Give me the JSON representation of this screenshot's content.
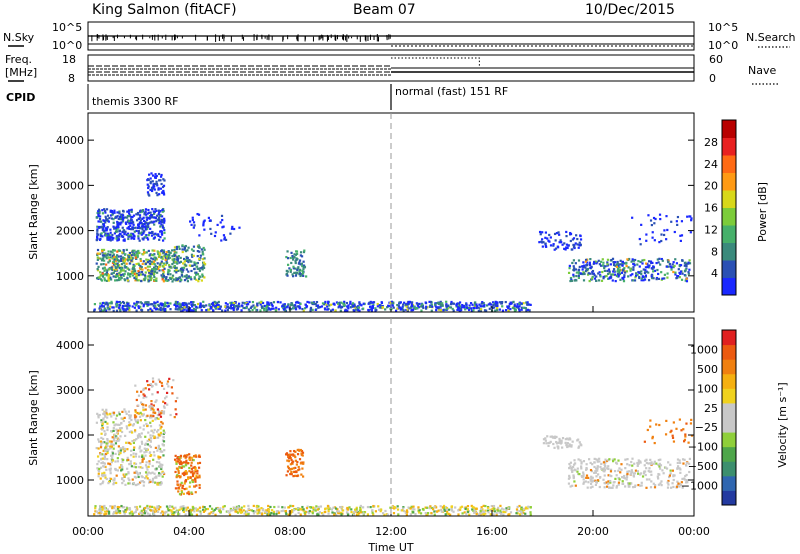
{
  "header": {
    "site": "King Salmon (fitACF)",
    "beam": "Beam 07",
    "date": "10/Dec/2015"
  },
  "top_panels": {
    "nsky_label": "N.Sky",
    "nsky_ticks": [
      "10^5",
      "10^0"
    ],
    "nsearch_label": "N.Search",
    "nsearch_ticks": [
      "10^5",
      "10^0"
    ],
    "freq_label": "Freq.",
    "freq_unit": "[MHz]",
    "freq_ticks": [
      "18",
      "8"
    ],
    "nave_label": "Nave",
    "nave_ticks": [
      "60",
      "0"
    ],
    "cpid_label": "CPID",
    "cpid_segments": [
      "themis 3300 RF",
      "normal (fast) 151 RF"
    ]
  },
  "colors": {
    "power_scale": [
      "#1a28ff",
      "#2a50b4",
      "#3a8a7c",
      "#46b06a",
      "#7ccc3a",
      "#d8d81a",
      "#ff9a14",
      "#ff6a14",
      "#e82020",
      "#b80000"
    ],
    "velocity_scale": [
      "#233aa0",
      "#2f66b0",
      "#3c8f6e",
      "#4ea64a",
      "#8fcf3a",
      "#c8c8c8",
      "#c8c8c8",
      "#f0d21e",
      "#f5b010",
      "#f08010",
      "#ec5a10",
      "#e02020"
    ]
  },
  "chart_data": [
    {
      "type": "heatmap",
      "panel": "power",
      "ylabel": "Slant Range [km]",
      "ylim": [
        200,
        4600
      ],
      "yticks": [
        "1000",
        "2000",
        "3000",
        "4000"
      ],
      "xlim_hours": [
        0,
        24
      ],
      "colorbar_label": "Power [dB]",
      "colorbar_ticks": [
        "4",
        "8",
        "12",
        "16",
        "20",
        "24",
        "28"
      ],
      "colorbar_range": [
        0,
        32
      ]
    },
    {
      "type": "heatmap",
      "panel": "velocity",
      "ylabel": "Slant Range [km]",
      "ylim": [
        200,
        4600
      ],
      "yticks": [
        "1000",
        "2000",
        "3000",
        "4000"
      ],
      "xlabel": "Time UT",
      "xticks": [
        "00:00",
        "04:00",
        "08:00",
        "12:00",
        "16:00",
        "20:00",
        "00:00"
      ],
      "xlim_hours": [
        0,
        24
      ],
      "colorbar_label": "Velocity [m s⁻¹]",
      "colorbar_ticks": [
        "1000",
        "500",
        "100",
        "25",
        "−25",
        "−100",
        "−500",
        "−1000"
      ]
    }
  ]
}
